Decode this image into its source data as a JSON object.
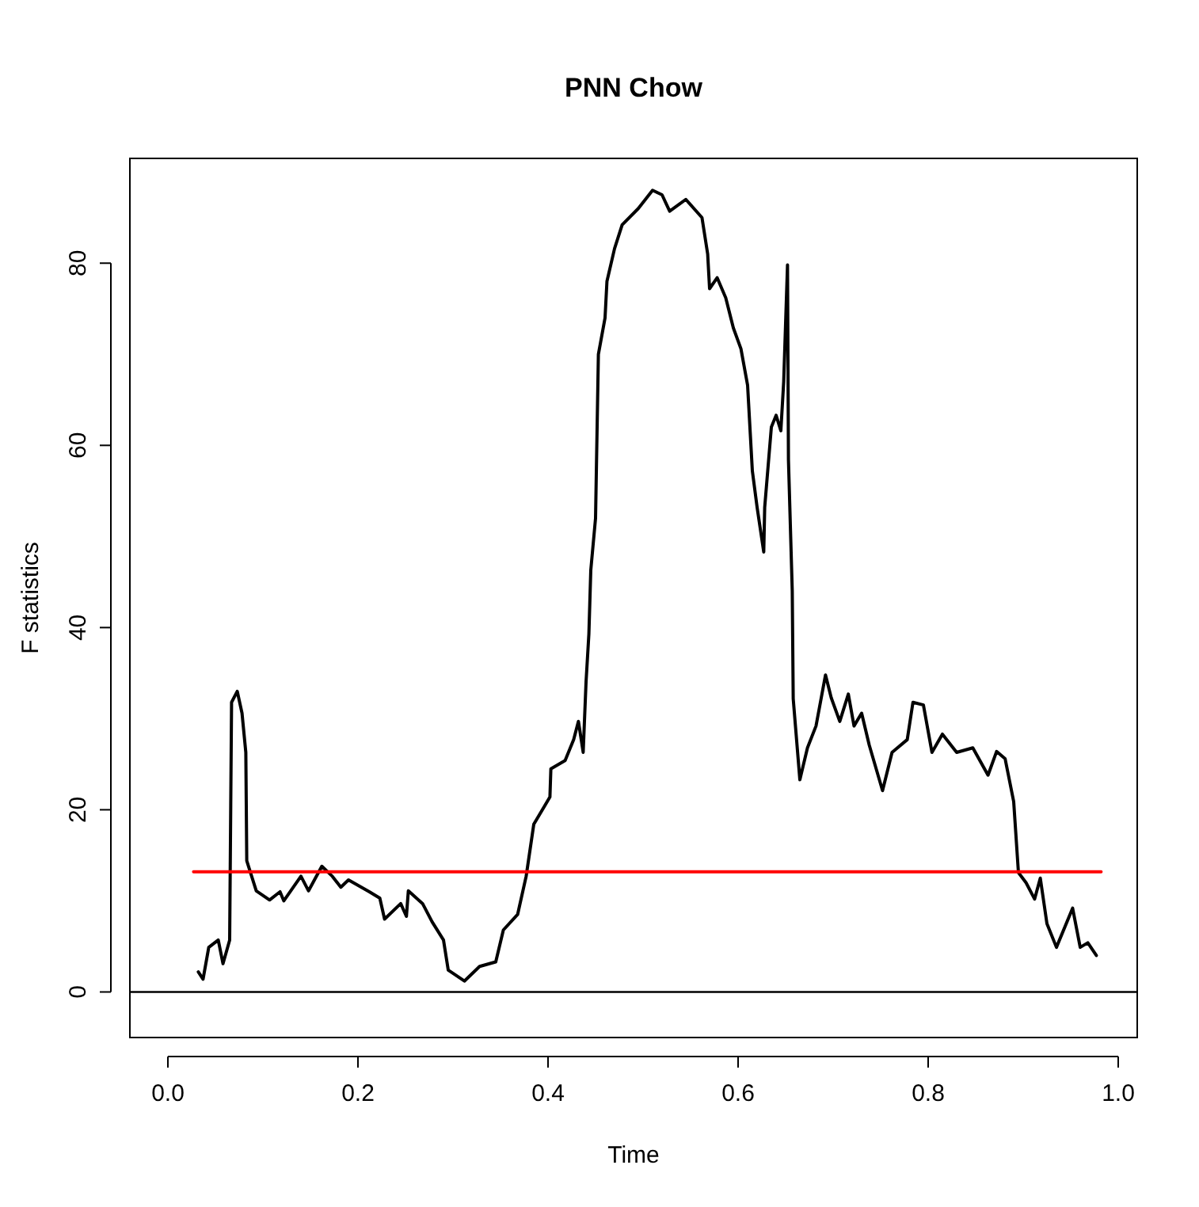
{
  "chart_data": {
    "type": "line",
    "title": "PNN Chow",
    "xlabel": "Time",
    "ylabel": "F statistics",
    "xlim": [
      -0.04,
      1.02
    ],
    "ylim": [
      -5,
      91.5
    ],
    "xticks": [
      {
        "value": 0,
        "label": "0.0"
      },
      {
        "value": 0.2,
        "label": "0.2"
      },
      {
        "value": 0.4,
        "label": "0.4"
      },
      {
        "value": 0.6,
        "label": "0.6"
      },
      {
        "value": 0.8,
        "label": "0.8"
      },
      {
        "value": 1,
        "label": "1.0"
      }
    ],
    "yticks": [
      0,
      20,
      40,
      60,
      80
    ],
    "grid": false,
    "ref_lines": [
      {
        "axis": "y",
        "value": 0,
        "color": "#000000"
      }
    ],
    "series": [
      {
        "color": "#000000",
        "x": [
          0.032,
          0.037,
          0.043,
          0.053,
          0.058,
          0.065,
          0.067,
          0.073,
          0.078,
          0.082,
          0.083,
          0.093,
          0.107,
          0.118,
          0.122,
          0.14,
          0.148,
          0.162,
          0.173,
          0.182,
          0.19,
          0.212,
          0.223,
          0.228,
          0.245,
          0.251,
          0.253,
          0.268,
          0.278,
          0.29,
          0.295,
          0.312,
          0.328,
          0.345,
          0.353,
          0.368,
          0.377,
          0.385,
          0.402,
          0.403,
          0.418,
          0.427,
          0.432,
          0.437,
          0.44,
          0.443,
          0.445,
          0.45,
          0.453,
          0.46,
          0.462,
          0.47,
          0.478,
          0.495,
          0.51,
          0.52,
          0.528,
          0.545,
          0.562,
          0.568,
          0.57,
          0.578,
          0.587,
          0.595,
          0.603,
          0.61,
          0.615,
          0.62,
          0.627,
          0.628,
          0.635,
          0.64,
          0.645,
          0.648,
          0.652,
          0.653,
          0.657,
          0.658,
          0.665,
          0.673,
          0.682,
          0.692,
          0.698,
          0.707,
          0.716,
          0.722,
          0.73,
          0.738,
          0.752,
          0.762,
          0.778,
          0.784,
          0.795,
          0.804,
          0.815,
          0.83,
          0.847,
          0.863,
          0.872,
          0.881,
          0.89,
          0.895,
          0.903,
          0.912,
          0.918,
          0.925,
          0.935,
          0.952,
          0.96,
          0.968,
          0.977
        ],
        "values": [
          2.2,
          1.4,
          4.9,
          5.7,
          3.1,
          5.7,
          31.8,
          33,
          30.6,
          26.3,
          14.4,
          11.1,
          10.1,
          11,
          10,
          12.7,
          11.1,
          13.8,
          12.7,
          11.5,
          12.3,
          11,
          10.3,
          8,
          9.7,
          8.3,
          11.1,
          9.7,
          7.7,
          5.7,
          2.4,
          1.2,
          2.8,
          3.3,
          6.8,
          8.5,
          12.7,
          18.4,
          21.4,
          24.5,
          25.4,
          27.7,
          29.7,
          26.3,
          34,
          39.3,
          46.3,
          52,
          70,
          74,
          78,
          81.6,
          84.2,
          86,
          88,
          87.5,
          85.7,
          87,
          85,
          81,
          77.2,
          78.4,
          76.2,
          72.9,
          70.6,
          66.6,
          57.2,
          53.2,
          48.3,
          53.2,
          62,
          63.3,
          61.6,
          67,
          79.8,
          58.4,
          44,
          32.2,
          23.3,
          26.8,
          29.2,
          34.8,
          32.3,
          29.7,
          32.7,
          29.2,
          30.6,
          27.1,
          22.1,
          26.3,
          27.7,
          31.8,
          31.5,
          26.3,
          28.3,
          26.3,
          26.8,
          23.8,
          26.4,
          25.6,
          20.9,
          13.1,
          12,
          10.2,
          12.5,
          7.5,
          4.9,
          9.2,
          4.9,
          5.4,
          4
        ]
      },
      {
        "color": "#ff0000",
        "x": [
          0.027,
          0.982
        ],
        "values": [
          13.2,
          13.2
        ]
      }
    ]
  }
}
